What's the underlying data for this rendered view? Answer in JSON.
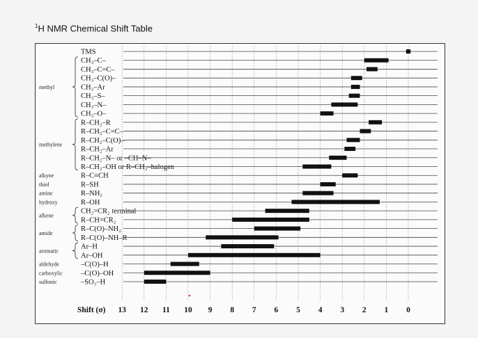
{
  "page": {
    "title": "H NMR Chemical Shift Table",
    "title_prefix": "1"
  },
  "chart_data": {
    "type": "bar",
    "orientation": "horizontal-range",
    "title": "¹H NMR Chemical Shift Table",
    "xlabel": "Shift (σ)",
    "xlim": [
      13,
      -0.5
    ],
    "x_ticks": [
      "13",
      "12",
      "11",
      "10",
      "9",
      "8",
      "7",
      "6",
      "5",
      "4",
      "3",
      "2",
      "1",
      "0"
    ],
    "grid": "vertical dotted lines at each integer shift",
    "rows": [
      {
        "label": "TMS",
        "group": "",
        "range": [
          0.1,
          -0.1
        ]
      },
      {
        "label": "CH₃–C–",
        "group": "methyl",
        "range": [
          2.0,
          0.9
        ]
      },
      {
        "label": "CH₃–C=C–",
        "group": "methyl",
        "range": [
          1.9,
          1.4
        ]
      },
      {
        "label": "CH₃–C(O)–",
        "group": "methyl",
        "range": [
          2.6,
          2.1
        ]
      },
      {
        "label": "CH₃–Ar",
        "group": "methyl",
        "range": [
          2.6,
          2.2
        ]
      },
      {
        "label": "CH₃–S–",
        "group": "methyl",
        "range": [
          2.7,
          2.2
        ]
      },
      {
        "label": "CH₃–N–",
        "group": "methyl",
        "range": [
          3.5,
          2.3
        ]
      },
      {
        "label": "CH₃–O–",
        "group": "methyl",
        "range": [
          4.0,
          3.4
        ]
      },
      {
        "label": "R–CH₂–R",
        "group": "methylene",
        "range": [
          1.8,
          1.2
        ]
      },
      {
        "label": "R–CH₂–C=C–",
        "group": "methylene",
        "range": [
          2.2,
          1.7
        ]
      },
      {
        "label": "R–CH₂–C(O)–",
        "group": "methylene",
        "range": [
          2.8,
          2.2
        ]
      },
      {
        "label": "R–CH₂–Ar",
        "group": "methylene",
        "range": [
          2.9,
          2.4
        ]
      },
      {
        "label": "R–CH₂–N–  or  –CH–N–",
        "group": "methylene",
        "range": [
          3.6,
          2.8
        ]
      },
      {
        "label": "R–CH₂–OH  or  R–CH₂–halogen",
        "group": "methylene",
        "range": [
          4.8,
          3.5
        ]
      },
      {
        "label": "R–C≡CH",
        "group": "alkyne",
        "range": [
          3.0,
          2.3
        ]
      },
      {
        "label": "R–SH",
        "group": "thiol",
        "range": [
          4.0,
          3.3
        ]
      },
      {
        "label": "R–NH₂",
        "group": "amine",
        "range": [
          4.8,
          3.4
        ]
      },
      {
        "label": "R–OH",
        "group": "hydroxy",
        "range": [
          5.3,
          1.3
        ]
      },
      {
        "label": "CH₂=CR₂ terminal",
        "group": "alkene",
        "range": [
          6.5,
          4.5
        ]
      },
      {
        "label": "R–CH=CR₂",
        "group": "alkene",
        "range": [
          8.0,
          4.5
        ]
      },
      {
        "label": "R–C(O)–NH₂",
        "group": "amide",
        "range": [
          7.0,
          4.9
        ]
      },
      {
        "label": "R–C(O)–NH–R",
        "group": "amide",
        "range": [
          9.2,
          5.9
        ]
      },
      {
        "label": "Ar–H",
        "group": "aromatic",
        "range": [
          8.5,
          6.1
        ]
      },
      {
        "label": "Ar–OH",
        "group": "aromatic",
        "range": [
          10.0,
          4.0
        ]
      },
      {
        "label": "–C(O)–H",
        "group": "aldehyde",
        "range": [
          10.8,
          9.5
        ]
      },
      {
        "label": "–C(O)–OH",
        "group": "carboxylic",
        "range": [
          12.0,
          9.0
        ]
      },
      {
        "label": "–SO₃–H",
        "group": "sulfonic",
        "range": [
          12.0,
          11.0
        ]
      }
    ],
    "groups": [
      {
        "name": "methyl",
        "first": 1,
        "last": 7,
        "brace": true
      },
      {
        "name": "methylene",
        "first": 8,
        "last": 13,
        "brace": true
      },
      {
        "name": "alkyne",
        "first": 14,
        "last": 14,
        "brace": false
      },
      {
        "name": "thiol",
        "first": 15,
        "last": 15,
        "brace": false
      },
      {
        "name": "amine",
        "first": 16,
        "last": 16,
        "brace": false
      },
      {
        "name": "hydroxy",
        "first": 17,
        "last": 17,
        "brace": false
      },
      {
        "name": "alkene",
        "first": 18,
        "last": 19,
        "brace": true
      },
      {
        "name": "amide",
        "first": 20,
        "last": 21,
        "brace": true
      },
      {
        "name": "aromatic",
        "first": 22,
        "last": 23,
        "brace": true
      },
      {
        "name": "aldehyde",
        "first": 24,
        "last": 24,
        "brace": false
      },
      {
        "name": "carboxylic",
        "first": 25,
        "last": 25,
        "brace": false
      },
      {
        "name": "sulfonic",
        "first": 26,
        "last": 26,
        "brace": false
      }
    ],
    "colors": {
      "bar": "#111111",
      "line": "#444444",
      "grid": "#777777",
      "marker": "#cc3333"
    }
  }
}
